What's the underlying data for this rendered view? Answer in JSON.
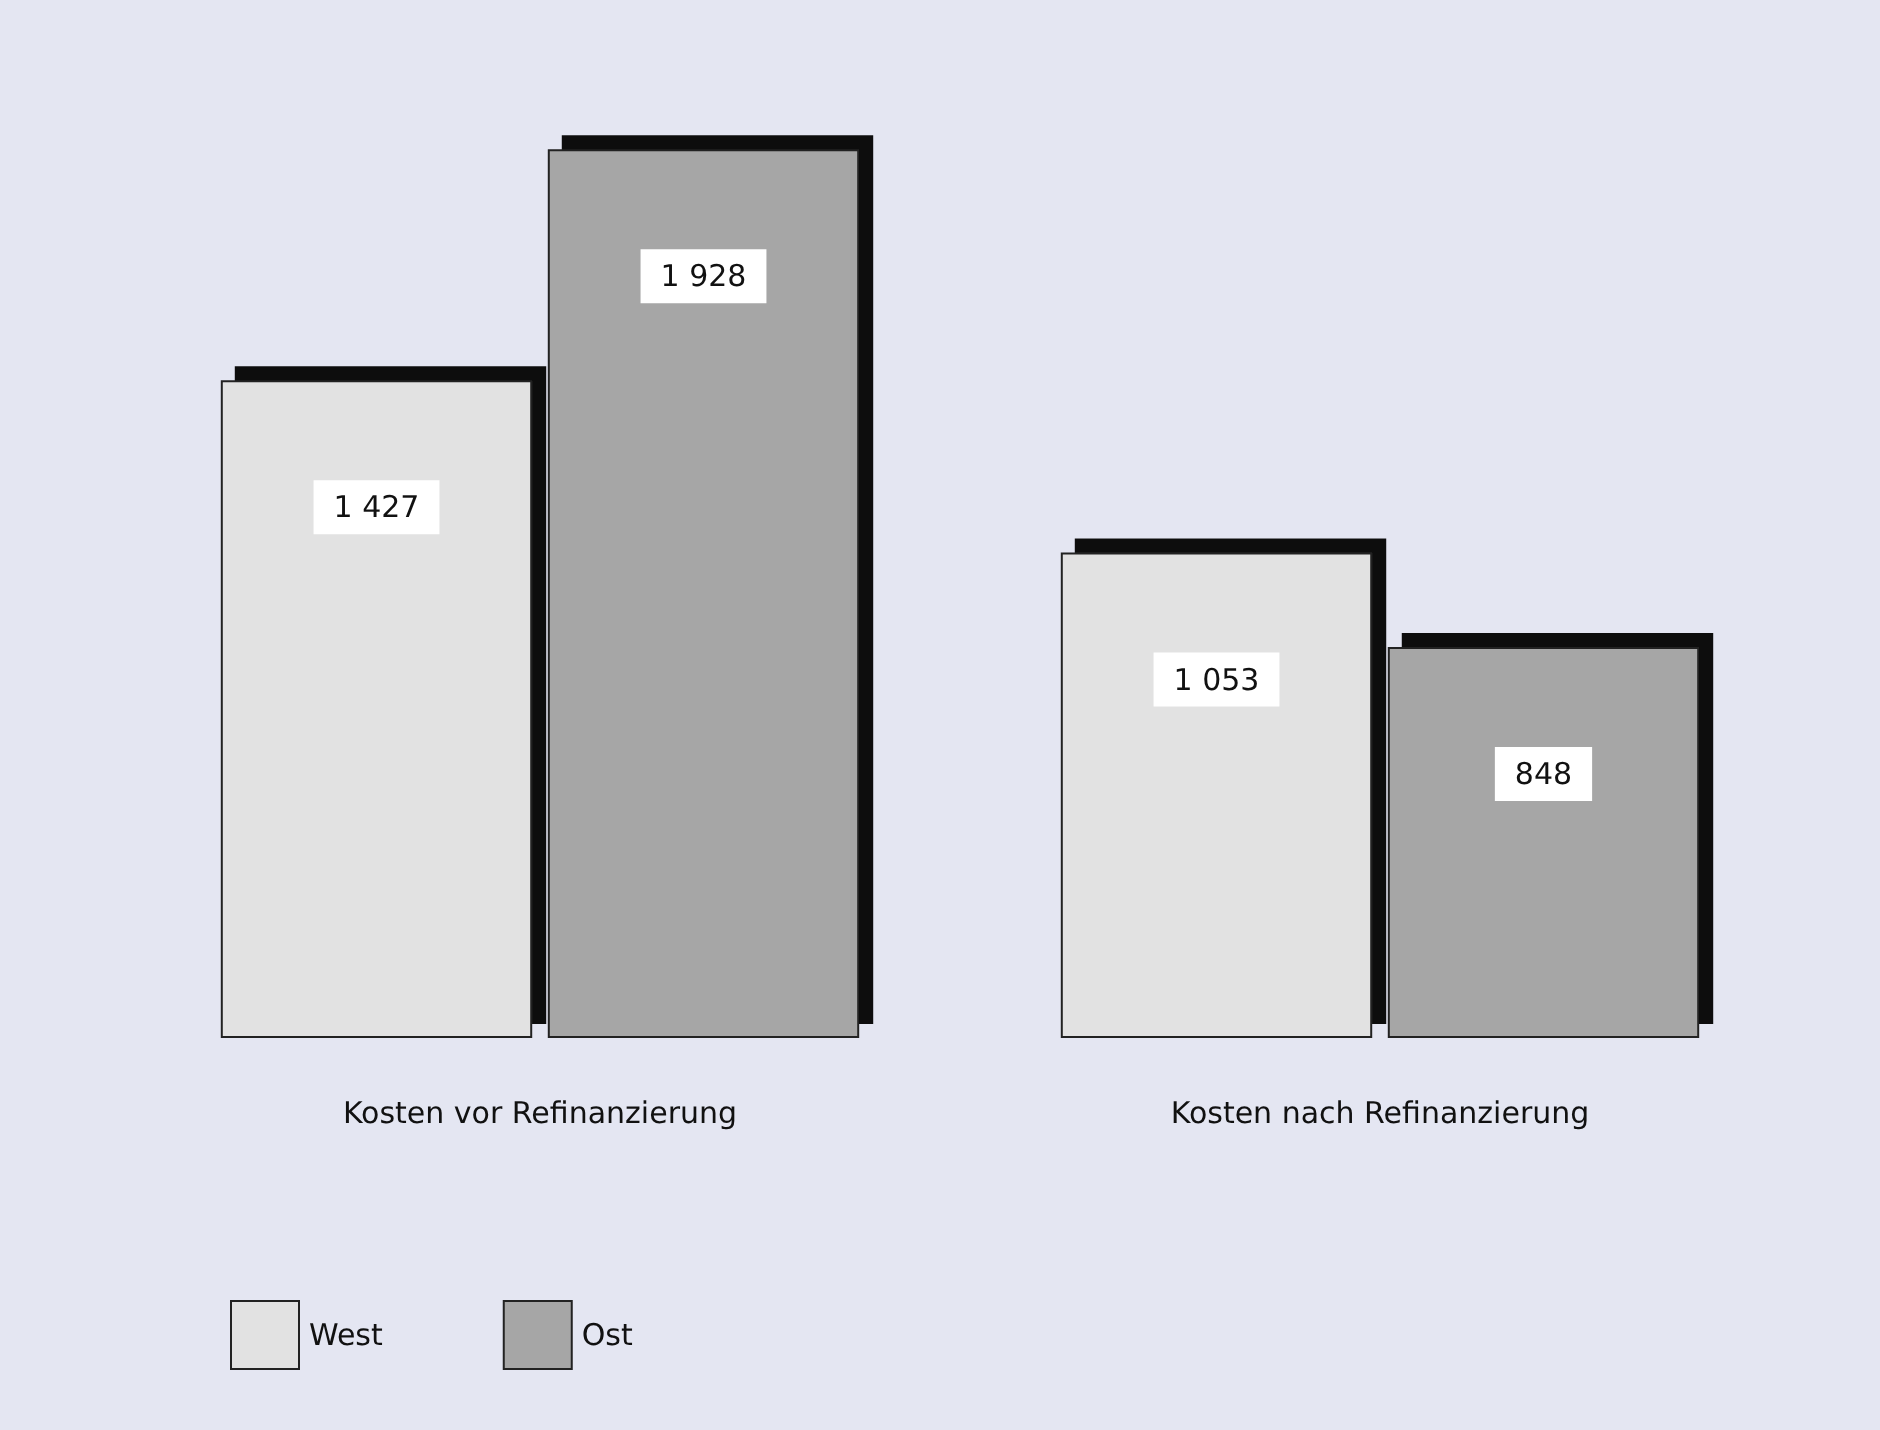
{
  "chart_data": {
    "type": "bar",
    "categories": [
      "Kosten vor Refinanzierung",
      "Kosten nach Refinanzierung"
    ],
    "series": [
      {
        "name": "West",
        "color": "#e2e2e2",
        "values": [
          1427,
          1053
        ],
        "value_labels": [
          "1 427",
          "1 053"
        ]
      },
      {
        "name": "Ost",
        "color": "#a6a6a6",
        "values": [
          1928,
          848
        ],
        "value_labels": [
          "1 928",
          "848"
        ]
      }
    ],
    "legend": "bottom left"
  }
}
